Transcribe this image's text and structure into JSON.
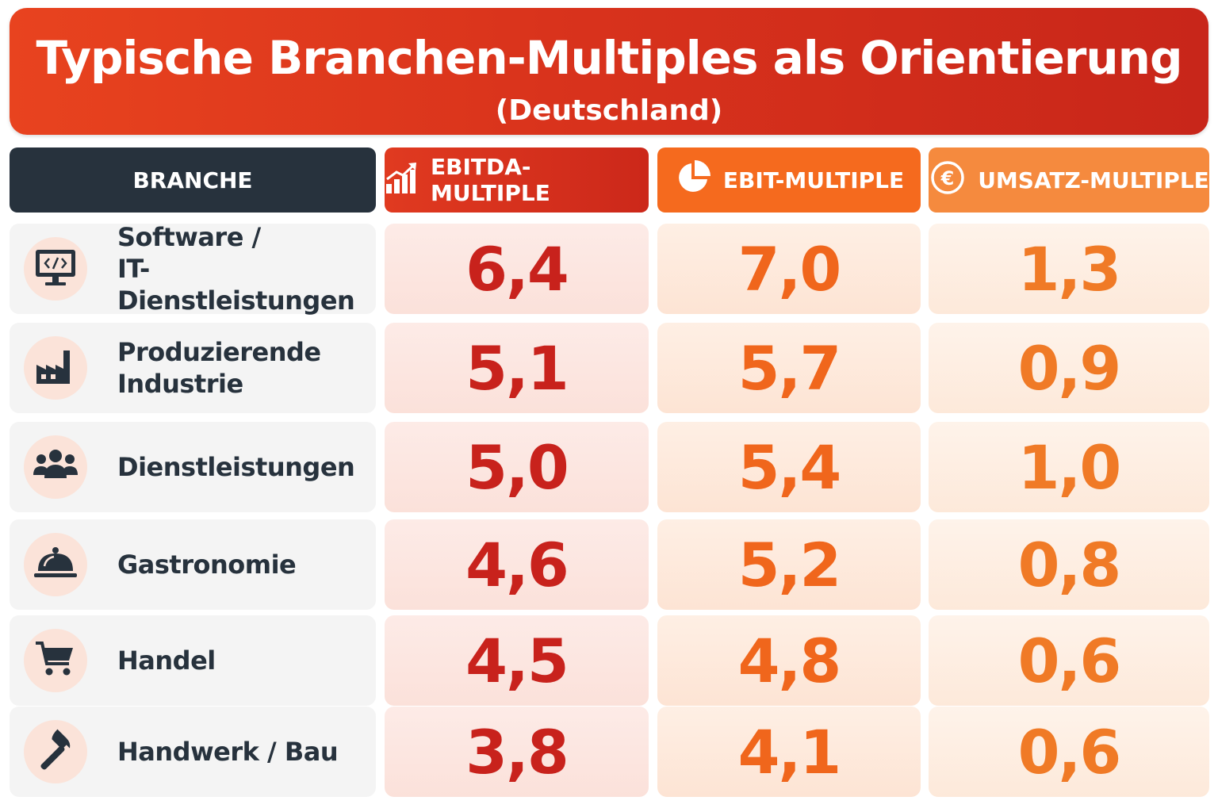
{
  "title": "Typische Branchen-Multiples als Orientierung",
  "subtitle": "(Deutschland)",
  "headers": {
    "branche": "BRANCHE",
    "ebitda": "EBITDA-MULTIPLE",
    "ebit": "EBIT-MULTIPLE",
    "umsatz": "UMSATZ-MULTIPLE"
  },
  "header_icons": {
    "ebitda": "bar-chart-growth-icon",
    "ebit": "pie-chart-icon",
    "umsatz": "euro-coin-icon"
  },
  "colors": {
    "banner": "#d9331c",
    "branche_header": "#27323d",
    "ebitda": "#c8221c",
    "ebit": "#f0661c",
    "umsatz": "#f07a26"
  },
  "rows": [
    {
      "line1": "Software /",
      "line2": "IT-Dienstleistungen",
      "icon": "monitor-code-icon",
      "ebitda": "6,4",
      "ebit": "7,0",
      "umsatz": "1,3"
    },
    {
      "line1": "Produzierende",
      "line2": "Industrie",
      "icon": "factory-icon",
      "ebitda": "5,1",
      "ebit": "5,7",
      "umsatz": "0,9"
    },
    {
      "line1": "Dienstleistungen",
      "line2": "",
      "icon": "people-group-icon",
      "ebitda": "5,0",
      "ebit": "5,4",
      "umsatz": "1,0"
    },
    {
      "line1": "Gastronomie",
      "line2": "",
      "icon": "serving-cloche-icon",
      "ebitda": "4,6",
      "ebit": "5,2",
      "umsatz": "0,8"
    },
    {
      "line1": "Handel",
      "line2": "",
      "icon": "shopping-cart-icon",
      "ebitda": "4,5",
      "ebit": "4,8",
      "umsatz": "0,6"
    },
    {
      "line1": "Handwerk / Bau",
      "line2": "",
      "icon": "hammer-icon",
      "ebitda": "3,8",
      "ebit": "4,1",
      "umsatz": "0,6"
    }
  ]
}
